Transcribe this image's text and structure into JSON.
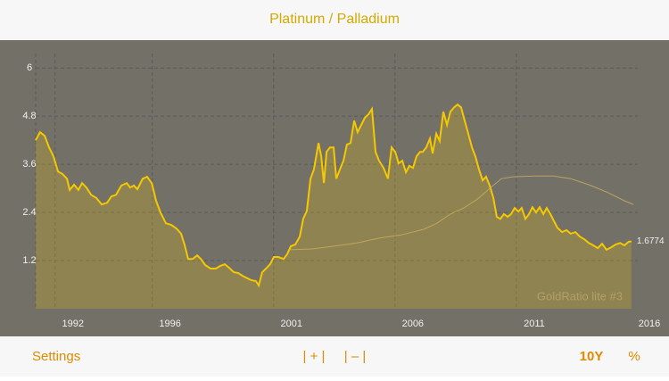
{
  "header": {
    "title": "Platinum / Palladium"
  },
  "toolbar": {
    "settings": "Settings",
    "zoom_in": "| + |",
    "zoom_out": "| – |",
    "range": "10Y",
    "mode": "%"
  },
  "chart_data": {
    "type": "line",
    "annotations": [
      "GoldRatio lite #3"
    ],
    "xlim": [
      1991.2,
      2016
    ],
    "xticks": [
      1992,
      1996,
      2001,
      2006,
      2011,
      2016
    ],
    "ylim": [
      0,
      6.36
    ],
    "yticks": [
      6,
      4.8,
      3.6,
      2.4,
      1.2
    ],
    "grid": true,
    "area": true,
    "series": [
      {
        "color": "#f5c800",
        "x": [
          1991.2,
          1991.38,
          1991.57,
          1991.75,
          1991.93,
          1992.12,
          1992.3,
          1992.49,
          1992.6,
          1992.78,
          1992.96,
          1993.11,
          1993.29,
          1993.48,
          1993.7,
          1993.92,
          1994.14,
          1994.32,
          1994.51,
          1994.73,
          1994.95,
          1995.09,
          1995.24,
          1995.39,
          1995.61,
          1995.79,
          1995.98,
          1996.16,
          1996.34,
          1996.56,
          1996.78,
          1997.0,
          1997.19,
          1997.34,
          1997.48,
          1997.67,
          1997.85,
          1998.0,
          1998.18,
          1998.4,
          1998.62,
          1998.81,
          1998.99,
          1999.17,
          1999.36,
          1999.54,
          1999.72,
          1999.91,
          2000.09,
          2000.27,
          2000.39,
          2000.53,
          2000.72,
          2000.86,
          2001.01,
          2001.19,
          2001.41,
          2001.56,
          2001.71,
          2001.89,
          2002.08,
          2002.22,
          2002.37,
          2002.52,
          2002.66,
          2002.85,
          2002.96,
          2003.07,
          2003.18,
          2003.32,
          2003.47,
          2003.58,
          2003.73,
          2003.88,
          2004.02,
          2004.17,
          2004.32,
          2004.46,
          2004.61,
          2004.76,
          2004.9,
          2005.05,
          2005.2,
          2005.34,
          2005.53,
          2005.71,
          2005.86,
          2006.01,
          2006.15,
          2006.3,
          2006.45,
          2006.59,
          2006.74,
          2006.89,
          2007.03,
          2007.14,
          2007.29,
          2007.44,
          2007.55,
          2007.7,
          2007.84,
          2007.99,
          2008.14,
          2008.28,
          2008.43,
          2008.58,
          2008.72,
          2008.87,
          2009.02,
          2009.17,
          2009.31,
          2009.46,
          2009.61,
          2009.75,
          2009.9,
          2010.05,
          2010.19,
          2010.34,
          2010.49,
          2010.64,
          2010.78,
          2010.93,
          2011.08,
          2011.22,
          2011.37,
          2011.52,
          2011.66,
          2011.81,
          2011.96,
          2012.11,
          2012.25,
          2012.4,
          2012.55,
          2012.69,
          2012.88,
          2013.06,
          2013.24,
          2013.43,
          2013.61,
          2013.8,
          2013.98,
          2014.16,
          2014.35,
          2014.53,
          2014.71,
          2014.9,
          2015.08,
          2015.27,
          2015.45,
          2015.63,
          2015.74
        ],
        "values": [
          4.2,
          4.4,
          4.31,
          4.02,
          3.8,
          3.42,
          3.36,
          3.24,
          2.96,
          3.09,
          2.96,
          3.13,
          3.02,
          2.84,
          2.76,
          2.6,
          2.64,
          2.8,
          2.84,
          3.07,
          3.13,
          3.02,
          3.07,
          2.98,
          3.24,
          3.29,
          3.13,
          2.69,
          2.4,
          2.13,
          2.09,
          2.0,
          1.87,
          1.58,
          1.24,
          1.24,
          1.33,
          1.24,
          1.09,
          1.0,
          1.0,
          1.07,
          1.11,
          1.02,
          0.91,
          0.89,
          0.82,
          0.76,
          0.71,
          0.69,
          0.58,
          0.91,
          1.02,
          1.11,
          1.29,
          1.29,
          1.24,
          1.36,
          1.56,
          1.6,
          1.8,
          2.24,
          2.44,
          3.24,
          3.47,
          4.13,
          3.8,
          3.13,
          3.91,
          4.02,
          4.02,
          3.24,
          3.47,
          3.69,
          4.09,
          4.13,
          4.69,
          4.4,
          4.58,
          4.76,
          4.84,
          4.98,
          3.91,
          3.69,
          3.51,
          3.24,
          4.02,
          3.91,
          3.62,
          3.69,
          3.4,
          3.56,
          3.51,
          3.8,
          3.91,
          3.91,
          4.02,
          4.24,
          3.87,
          4.36,
          4.18,
          4.91,
          4.58,
          4.91,
          5.02,
          5.09,
          5.02,
          4.69,
          4.36,
          4.02,
          3.8,
          3.47,
          3.2,
          3.29,
          3.07,
          2.76,
          2.29,
          2.24,
          2.36,
          2.29,
          2.36,
          2.51,
          2.42,
          2.51,
          2.24,
          2.36,
          2.53,
          2.4,
          2.53,
          2.36,
          2.51,
          2.36,
          2.18,
          2.02,
          1.91,
          1.96,
          1.87,
          1.91,
          1.8,
          1.73,
          1.64,
          1.58,
          1.51,
          1.62,
          1.47,
          1.53,
          1.6,
          1.64,
          1.58,
          1.67,
          1.6774
        ]
      },
      {
        "color": "#c9b15a",
        "x": [
          2001.67,
          2002.59,
          2003.51,
          2004.43,
          2005.34,
          2006.26,
          2007.18,
          2007.73,
          2008.28,
          2008.84,
          2009.39,
          2009.94,
          2010.38,
          2010.86,
          2011.78,
          2012.51,
          2013.24,
          2013.98,
          2014.71,
          2015.45,
          2015.82
        ],
        "values": [
          1.47,
          1.49,
          1.56,
          1.64,
          1.76,
          1.84,
          1.98,
          2.13,
          2.36,
          2.51,
          2.73,
          3.02,
          3.24,
          3.29,
          3.31,
          3.31,
          3.24,
          3.09,
          2.91,
          2.69,
          2.6
        ]
      }
    ]
  }
}
